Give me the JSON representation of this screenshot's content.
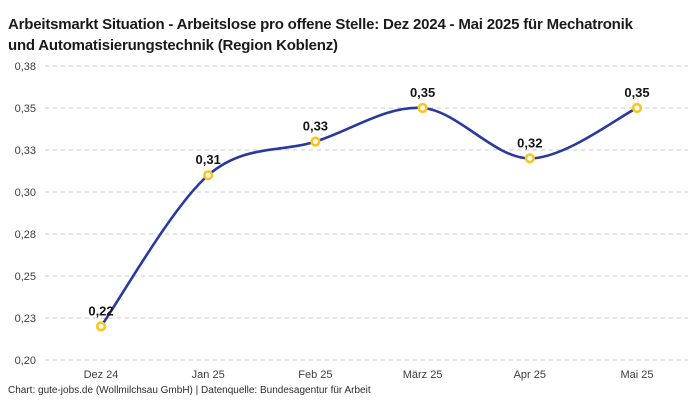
{
  "header": {
    "title": "Arbeitsmarkt Situation - Arbeitslose pro offene Stelle: Dez 2024 - Mai 2025 für Mechatronik und Automatisierungstechnik (Region Koblenz)"
  },
  "footer": {
    "credit": "Chart: gute-jobs.de (Wollmilchsau GmbH) | Datenquelle: Bundesagentur für Arbeit"
  },
  "chart_data": {
    "type": "line",
    "title": "Arbeitsmarkt Situation - Arbeitslose pro offene Stelle: Dez 2024 - Mai 2025 für Mechatronik und Automatisierungstechnik (Region Koblenz)",
    "categories": [
      "Dez 24",
      "Jan 25",
      "Feb 25",
      "März 25",
      "Apr 25",
      "Mai 25"
    ],
    "values": [
      0.22,
      0.31,
      0.33,
      0.35,
      0.32,
      0.35
    ],
    "point_labels": [
      "0,22",
      "0,31",
      "0,33",
      "0,35",
      "0,32",
      "0,35"
    ],
    "ylim": [
      0.2,
      0.375
    ],
    "yticks": [
      {
        "value": 0.375,
        "label": "0,38"
      },
      {
        "value": 0.35,
        "label": "0,35"
      },
      {
        "value": 0.325,
        "label": "0,33"
      },
      {
        "value": 0.3,
        "label": "0,30"
      },
      {
        "value": 0.275,
        "label": "0,28"
      },
      {
        "value": 0.25,
        "label": "0,25"
      },
      {
        "value": 0.225,
        "label": "0,23"
      },
      {
        "value": 0.2,
        "label": "0,20"
      }
    ],
    "grid": {
      "horizontal": true,
      "style": "dashed",
      "color": "#c9c9c9"
    },
    "legend": "none",
    "colors": {
      "line": "#2839a0",
      "marker_stroke": "#fcc41c",
      "marker_fill": "#ffffff",
      "data_label": "#141414",
      "tick_label": "#3d3d3d"
    }
  }
}
